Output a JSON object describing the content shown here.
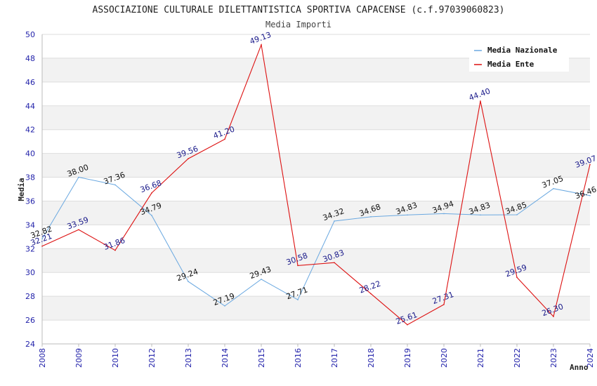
{
  "chart_data": {
    "type": "line",
    "title": "ASSOCIAZIONE CULTURALE DILETTANTISTICA SPORTIVA CAPACENSE (c.f.97039060823)",
    "subtitle": "Media Importi",
    "xlabel": "Anno",
    "ylabel": "Media",
    "ylim": [
      24,
      50
    ],
    "yticks": [
      24,
      26,
      28,
      30,
      32,
      34,
      36,
      38,
      40,
      42,
      44,
      46,
      48,
      50
    ],
    "x": [
      "2008",
      "2009",
      "2010",
      "2012",
      "2013",
      "2014",
      "2015",
      "2016",
      "2017",
      "2018",
      "2019",
      "2020",
      "2021",
      "2022",
      "2023",
      "2024"
    ],
    "series": [
      {
        "name": "Media Nazionale",
        "color": "#6aa8e0",
        "values": [
          32.82,
          38.0,
          37.36,
          34.79,
          29.24,
          27.19,
          29.43,
          27.71,
          34.32,
          34.68,
          34.83,
          34.94,
          34.83,
          34.85,
          37.05,
          36.46
        ],
        "labels": [
          "32.82",
          "38.00",
          "37.36",
          "34.79",
          "29.24",
          "27.19",
          "29.43",
          "27.71",
          "34.32",
          "34.68",
          "34.83",
          "34.94",
          "34.83",
          "34.85",
          "37.05",
          "36.46"
        ]
      },
      {
        "name": "Media Ente",
        "color": "#dd1111",
        "values": [
          32.21,
          33.59,
          31.86,
          36.68,
          39.56,
          41.2,
          49.13,
          30.58,
          30.83,
          28.22,
          25.61,
          27.31,
          44.4,
          29.59,
          26.3,
          39.07
        ],
        "labels": [
          "32.21",
          "33.59",
          "31.86",
          "36.68",
          "39.56",
          "41.20",
          "49.13",
          "30.58",
          "30.83",
          "28.22",
          "25.61",
          "27.31",
          "44.40",
          "29.59",
          "26.30",
          "39.07"
        ]
      }
    ],
    "grid": true,
    "legend_position": "top-right"
  }
}
